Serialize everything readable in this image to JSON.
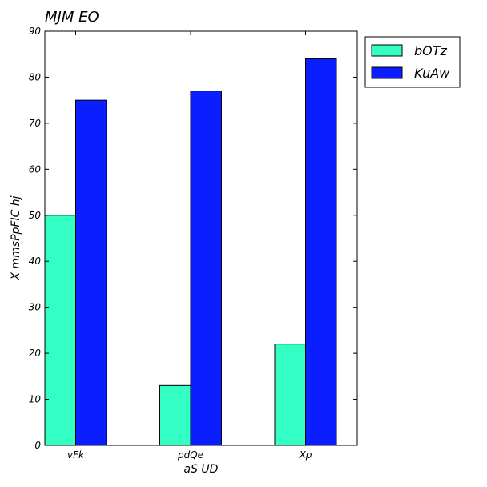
{
  "chart_data": {
    "type": "bar",
    "title": "MJM EO",
    "xlabel": "aS UD",
    "ylabel": "X mmsPpFIC hj",
    "categories": [
      "vFk",
      "pdQe",
      "Xp"
    ],
    "series": [
      {
        "name": "bOTz",
        "color": "#33ffc4",
        "values": [
          50,
          13,
          22
        ]
      },
      {
        "name": "KuAw",
        "color": "#0a1eff",
        "values": [
          75,
          77,
          84
        ]
      }
    ],
    "ylim": [
      0,
      90
    ],
    "yticks": [
      "0",
      "10",
      "20",
      "30",
      "40",
      "50",
      "60",
      "70",
      "80",
      "90"
    ],
    "grid": false,
    "legend_position": "outside-top-right"
  }
}
